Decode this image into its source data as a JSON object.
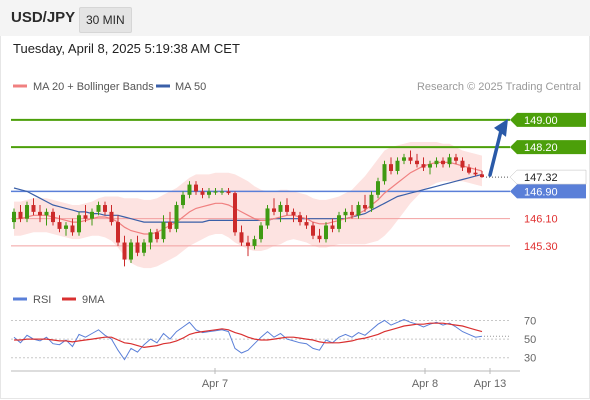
{
  "header": {
    "symbol": "USD/JPY",
    "interval": "30 MIN",
    "timestamp": "Tuesday, April 8, 2025 5:19:38 AM CET"
  },
  "legend": {
    "ma20": "MA 20 + Bollinger Bands",
    "ma50": "MA 50",
    "rsi": "RSI",
    "ma9": "9MA"
  },
  "credit": "Research © 2025 Trading Central",
  "colors": {
    "green_level": "#4c9f0a",
    "red_level": "#e03030",
    "blue_level": "#5a7fd8",
    "up_candle": "#3f9a12",
    "down_candle": "#cc2a2a",
    "bollinger_fill": "#fde3e1",
    "ma20": "#f08080",
    "ma50": "#3a5fa8",
    "rsi_line": "#5a7fd8",
    "rsi_ma": "#d93030",
    "arrow": "#2a5aa8"
  },
  "chart_data": [
    {
      "type": "candlestick",
      "y_range": [
        144.3,
        149.7
      ],
      "levels": [
        {
          "label": "149.00",
          "value": 149.0,
          "style": "green-badge"
        },
        {
          "label": "148.20",
          "value": 148.2,
          "style": "green-badge"
        },
        {
          "label": "147.32",
          "value": 147.32,
          "style": "current-price"
        },
        {
          "label": "146.90",
          "value": 146.9,
          "style": "blue-badge"
        },
        {
          "label": "146.10",
          "value": 146.1,
          "style": "red-text"
        },
        {
          "label": "145.30",
          "value": 145.3,
          "style": "red-text"
        }
      ],
      "x_labels": [
        "Apr 7",
        "Apr 8",
        "Apr 13"
      ],
      "candles": [
        [
          146.0,
          146.4,
          145.8,
          146.3
        ],
        [
          146.3,
          146.5,
          146.0,
          146.1
        ],
        [
          146.1,
          146.6,
          146.0,
          146.5
        ],
        [
          146.5,
          146.7,
          146.2,
          146.3
        ],
        [
          146.3,
          146.5,
          146.0,
          146.2
        ],
        [
          146.2,
          146.4,
          145.9,
          146.3
        ],
        [
          146.3,
          146.4,
          145.9,
          146.0
        ],
        [
          146.0,
          146.2,
          145.7,
          145.8
        ],
        [
          145.8,
          146.0,
          145.6,
          145.9
        ],
        [
          145.9,
          146.1,
          145.6,
          145.7
        ],
        [
          145.7,
          146.3,
          145.6,
          146.2
        ],
        [
          146.2,
          146.5,
          146.0,
          146.1
        ],
        [
          146.1,
          146.4,
          145.9,
          146.3
        ],
        [
          146.3,
          146.6,
          146.2,
          146.5
        ],
        [
          146.5,
          146.6,
          146.2,
          146.3
        ],
        [
          146.3,
          146.5,
          145.9,
          146.0
        ],
        [
          146.0,
          146.2,
          145.3,
          145.4
        ],
        [
          145.4,
          145.6,
          144.7,
          144.9
        ],
        [
          144.9,
          145.5,
          144.8,
          145.4
        ],
        [
          145.4,
          145.6,
          145.0,
          145.1
        ],
        [
          145.1,
          145.5,
          145.0,
          145.4
        ],
        [
          145.4,
          145.8,
          145.2,
          145.7
        ],
        [
          145.7,
          145.8,
          145.4,
          145.5
        ],
        [
          145.5,
          146.2,
          145.4,
          146.0
        ],
        [
          146.0,
          146.3,
          145.7,
          145.8
        ],
        [
          145.8,
          146.6,
          145.7,
          146.5
        ],
        [
          146.5,
          146.9,
          146.4,
          146.8
        ],
        [
          146.8,
          147.2,
          146.7,
          147.1
        ],
        [
          147.1,
          147.2,
          146.8,
          146.9
        ],
        [
          146.9,
          147.0,
          146.7,
          146.8
        ],
        [
          146.8,
          147.0,
          146.7,
          146.9
        ],
        [
          146.9,
          147.0,
          146.8,
          146.9
        ],
        [
          146.9,
          147.0,
          146.8,
          146.9
        ],
        [
          146.9,
          147.0,
          146.8,
          146.85
        ],
        [
          146.85,
          146.9,
          145.6,
          145.7
        ],
        [
          145.7,
          145.9,
          145.3,
          145.4
        ],
        [
          145.4,
          145.6,
          145.0,
          145.3
        ],
        [
          145.3,
          145.6,
          145.2,
          145.5
        ],
        [
          145.5,
          146.0,
          145.4,
          145.9
        ],
        [
          145.9,
          146.5,
          145.8,
          146.4
        ],
        [
          146.4,
          146.7,
          146.2,
          146.3
        ],
        [
          146.3,
          146.6,
          146.0,
          146.5
        ],
        [
          146.5,
          146.7,
          146.2,
          146.3
        ],
        [
          146.3,
          146.4,
          146.0,
          146.2
        ],
        [
          146.2,
          146.3,
          145.9,
          146.0
        ],
        [
          146.0,
          146.2,
          145.8,
          145.9
        ],
        [
          145.9,
          146.0,
          145.5,
          145.6
        ],
        [
          145.6,
          145.8,
          145.4,
          145.5
        ],
        [
          145.5,
          146.0,
          145.4,
          145.9
        ],
        [
          145.9,
          146.1,
          145.7,
          145.8
        ],
        [
          145.8,
          146.3,
          145.7,
          146.2
        ],
        [
          146.2,
          146.4,
          146.0,
          146.3
        ],
        [
          146.3,
          146.5,
          146.1,
          146.2
        ],
        [
          146.2,
          146.6,
          146.1,
          146.5
        ],
        [
          146.5,
          146.8,
          146.3,
          146.4
        ],
        [
          146.4,
          146.9,
          146.3,
          146.8
        ],
        [
          146.8,
          147.3,
          146.7,
          147.2
        ],
        [
          147.2,
          147.8,
          147.1,
          147.7
        ],
        [
          147.7,
          147.9,
          147.4,
          147.5
        ],
        [
          147.5,
          147.9,
          147.4,
          147.8
        ],
        [
          147.8,
          148.0,
          147.7,
          147.9
        ],
        [
          147.9,
          148.1,
          147.7,
          147.8
        ],
        [
          147.8,
          148.0,
          147.6,
          147.7
        ],
        [
          147.7,
          147.9,
          147.5,
          147.6
        ],
        [
          147.6,
          147.8,
          147.4,
          147.7
        ],
        [
          147.7,
          147.9,
          147.6,
          147.8
        ],
        [
          147.8,
          147.9,
          147.6,
          147.7
        ],
        [
          147.7,
          148.0,
          147.6,
          147.9
        ],
        [
          147.9,
          148.0,
          147.7,
          147.8
        ],
        [
          147.8,
          147.9,
          147.5,
          147.6
        ],
        [
          147.6,
          147.7,
          147.4,
          147.45
        ],
        [
          147.45,
          147.6,
          147.35,
          147.4
        ],
        [
          147.4,
          147.5,
          147.3,
          147.32
        ]
      ],
      "ma20": [
        146.1,
        146.1,
        146.15,
        146.2,
        146.2,
        146.2,
        146.15,
        146.1,
        146.05,
        146.0,
        146.0,
        146.05,
        146.1,
        146.15,
        146.15,
        146.1,
        146.0,
        145.85,
        145.75,
        145.7,
        145.65,
        145.65,
        145.7,
        145.8,
        145.9,
        146.0,
        146.15,
        146.3,
        146.4,
        146.45,
        146.5,
        146.55,
        146.55,
        146.5,
        146.4,
        146.3,
        146.2,
        146.1,
        146.05,
        146.05,
        146.1,
        146.15,
        146.2,
        146.2,
        146.15,
        146.1,
        146.0,
        145.95,
        145.95,
        146.0,
        146.05,
        146.1,
        146.15,
        146.25,
        146.35,
        146.5,
        146.65,
        146.85,
        147.0,
        147.15,
        147.3,
        147.45,
        147.55,
        147.65,
        147.7,
        147.75,
        147.75,
        147.75,
        147.7,
        147.65,
        147.6,
        147.55,
        147.5
      ],
      "bollinger_width": [
        0.5,
        0.5,
        0.5,
        0.5,
        0.5,
        0.5,
        0.5,
        0.5,
        0.5,
        0.5,
        0.5,
        0.5,
        0.5,
        0.55,
        0.6,
        0.65,
        0.75,
        0.85,
        0.95,
        1.0,
        1.0,
        1.0,
        1.0,
        1.0,
        1.0,
        1.0,
        1.0,
        1.0,
        1.0,
        0.95,
        0.9,
        0.9,
        0.9,
        0.95,
        1.0,
        1.0,
        1.0,
        0.95,
        0.9,
        0.85,
        0.8,
        0.8,
        0.75,
        0.7,
        0.7,
        0.7,
        0.7,
        0.7,
        0.7,
        0.7,
        0.7,
        0.75,
        0.8,
        0.9,
        1.0,
        1.1,
        1.2,
        1.25,
        1.2,
        1.1,
        1.0,
        0.9,
        0.8,
        0.7,
        0.65,
        0.6,
        0.55,
        0.55,
        0.5,
        0.45,
        0.45,
        0.45,
        0.45
      ],
      "ma50": [
        147.0,
        146.95,
        146.9,
        146.8,
        146.7,
        146.6,
        146.5,
        146.45,
        146.4,
        146.35,
        146.3,
        146.3,
        146.25,
        146.25,
        146.2,
        146.2,
        146.2,
        146.15,
        146.1,
        146.05,
        146.0,
        146.0,
        146.0,
        146.0,
        146.0,
        146.0,
        146.0,
        146.0,
        146.0,
        146.0,
        146.05,
        146.05,
        146.05,
        146.05,
        146.05,
        146.05,
        146.05,
        146.05,
        146.05,
        146.05,
        146.1,
        146.1,
        146.1,
        146.1,
        146.1,
        146.1,
        146.1,
        146.1,
        146.1,
        146.1,
        146.1,
        146.1,
        146.15,
        146.2,
        146.25,
        146.35,
        146.45,
        146.55,
        146.65,
        146.75,
        146.8,
        146.85,
        146.9,
        146.95,
        147.0,
        147.05,
        147.1,
        147.15,
        147.2,
        147.25,
        147.3,
        147.35,
        147.4
      ],
      "forecast": {
        "from": 147.32,
        "to": 149.0
      }
    },
    {
      "type": "line",
      "y_labels": [
        "70",
        "50",
        "30"
      ],
      "y_ticks": [
        70,
        50,
        30
      ],
      "y_range": [
        20,
        78
      ],
      "series": [
        {
          "name": "RSI",
          "values": [
            52,
            46,
            54,
            50,
            48,
            52,
            45,
            44,
            49,
            42,
            55,
            52,
            56,
            60,
            54,
            50,
            38,
            28,
            40,
            36,
            44,
            50,
            46,
            56,
            50,
            58,
            63,
            68,
            60,
            57,
            58,
            59,
            60,
            58,
            40,
            35,
            38,
            45,
            52,
            58,
            52,
            56,
            50,
            48,
            46,
            45,
            40,
            38,
            49,
            46,
            52,
            55,
            52,
            57,
            54,
            60,
            66,
            70,
            65,
            68,
            71,
            68,
            66,
            63,
            66,
            68,
            65,
            67,
            63,
            58,
            55,
            52,
            53
          ]
        },
        {
          "name": "9MA",
          "values": [
            49,
            49,
            50,
            50,
            50,
            50,
            49,
            48,
            48,
            47,
            48,
            49,
            50,
            51,
            52,
            52,
            49,
            46,
            45,
            43,
            41,
            42,
            43,
            45,
            46,
            48,
            51,
            55,
            57,
            58,
            59,
            60,
            61,
            60,
            57,
            55,
            52,
            50,
            49,
            49,
            50,
            51,
            52,
            52,
            51,
            50,
            49,
            47,
            46,
            46,
            46,
            47,
            48,
            50,
            51,
            53,
            55,
            58,
            60,
            62,
            64,
            65,
            66,
            66,
            67,
            67,
            67,
            66,
            65,
            64,
            62,
            60,
            58
          ]
        }
      ]
    }
  ]
}
